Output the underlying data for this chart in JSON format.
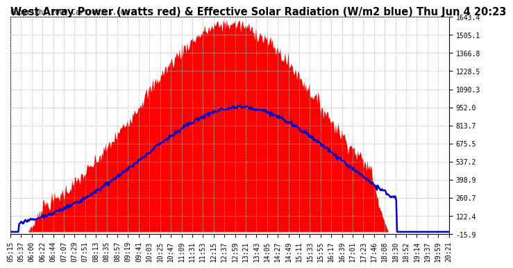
{
  "title": "West Array Power (watts red) & Effective Solar Radiation (W/m2 blue) Thu Jun 4 20:23",
  "copyright": "Copyright 2009 Cartronics.com",
  "yticks": [
    1643.4,
    1505.1,
    1366.8,
    1228.5,
    1090.3,
    952.0,
    813.7,
    675.5,
    537.2,
    398.9,
    260.7,
    122.4,
    -15.9
  ],
  "ymin": -15.9,
  "ymax": 1643.4,
  "xtick_labels": [
    "05:15",
    "05:37",
    "06:00",
    "06:22",
    "06:44",
    "07:07",
    "07:29",
    "07:51",
    "08:13",
    "08:35",
    "08:57",
    "09:19",
    "09:41",
    "10:03",
    "10:25",
    "10:47",
    "11:09",
    "11:31",
    "11:53",
    "12:15",
    "12:37",
    "12:59",
    "13:21",
    "13:43",
    "14:05",
    "14:27",
    "14:49",
    "15:11",
    "15:33",
    "15:55",
    "16:17",
    "16:39",
    "17:01",
    "17:23",
    "17:46",
    "18:08",
    "18:30",
    "18:52",
    "19:14",
    "19:37",
    "19:59",
    "20:21"
  ],
  "bg_color": "#ffffff",
  "plot_bg_color": "#ffffff",
  "grid_color": "#bbbbbb",
  "red_color": "#ff0000",
  "blue_color": "#0000cc",
  "title_fontsize": 10.5,
  "copyright_fontsize": 7,
  "tick_fontsize": 7
}
